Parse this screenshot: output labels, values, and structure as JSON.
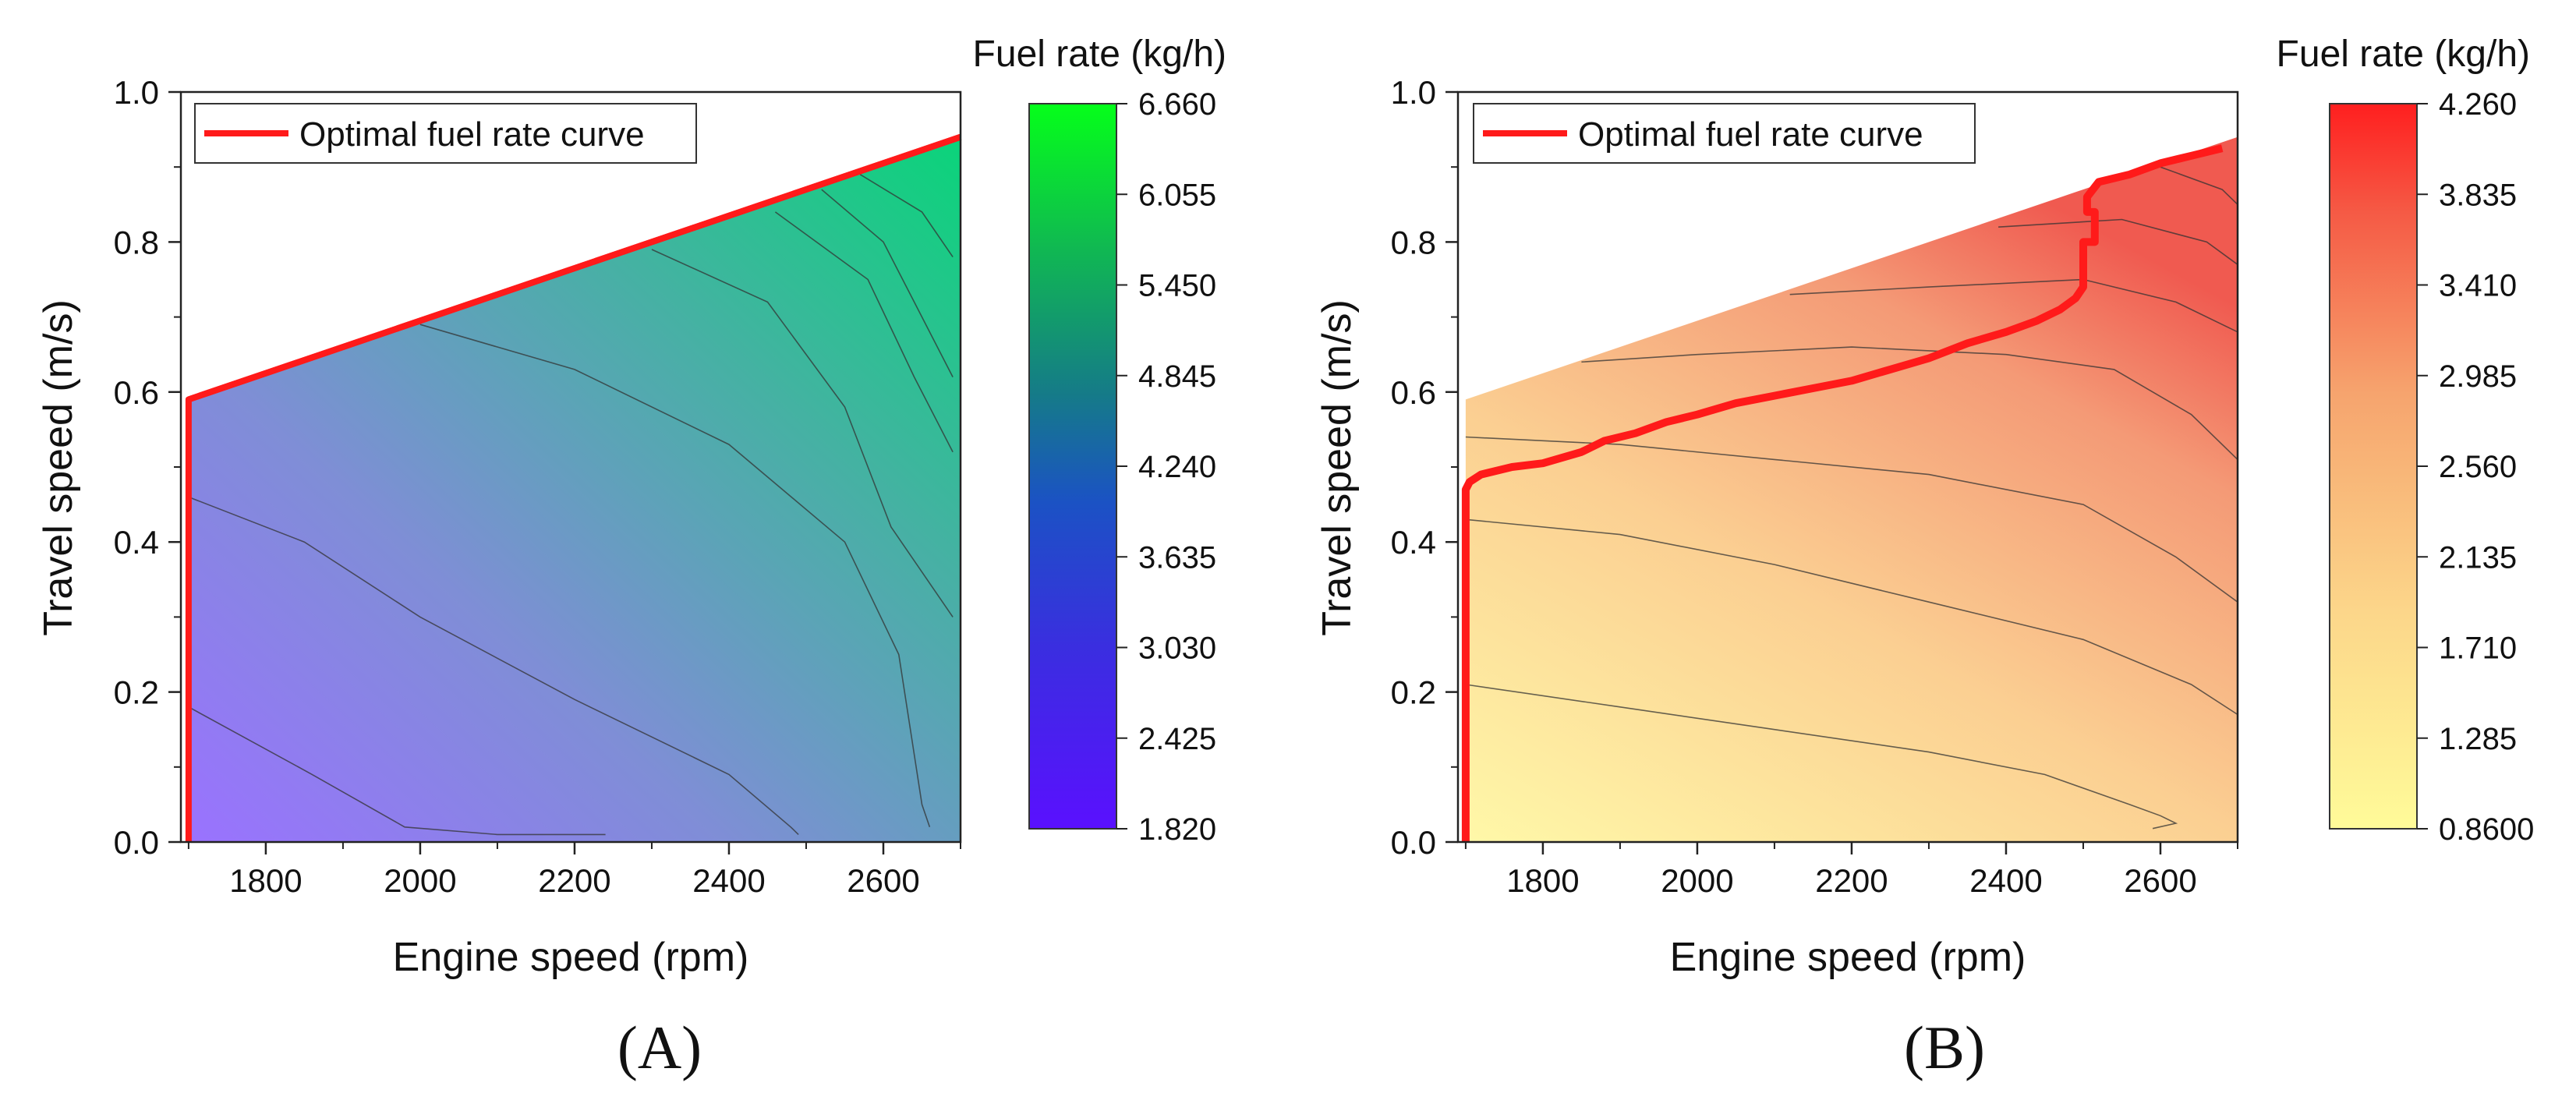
{
  "chart_data": [
    {
      "type": "contour",
      "panel_label": "(A)",
      "xlabel": "Engine speed (rpm)",
      "ylabel": "Travel speed (m/s)",
      "xlim": [
        1690,
        2700
      ],
      "ylim": [
        0.0,
        1.0
      ],
      "x_ticks": [
        1800,
        2000,
        2200,
        2400,
        2600
      ],
      "y_ticks": [
        0.0,
        0.2,
        0.4,
        0.6,
        0.8,
        1.0
      ],
      "x_tick_labels": [
        "1800",
        "2000",
        "2200",
        "2400",
        "2600"
      ],
      "y_tick_labels": [
        "0.0",
        "0.2",
        "0.4",
        "0.6",
        "0.8",
        "1.0"
      ],
      "colorbar_title": "Fuel rate (kg/h)",
      "colorbar_ticks": [
        "6.660",
        "6.055",
        "5.450",
        "4.845",
        "4.240",
        "3.635",
        "3.030",
        "2.425",
        "1.820"
      ],
      "colorbar_range": [
        1.82,
        6.66
      ],
      "colors": {
        "low": "#6a2bff",
        "mid": "#2c5fd8",
        "high": "#0ff21f"
      },
      "legend_label": "Optimal fuel rate curve",
      "legend_position": "top-left",
      "curve_color": "#ff1a1a",
      "feasible_boundary": {
        "x": [
          1700,
          2700
        ],
        "y": [
          0.59,
          0.94
        ]
      },
      "optimal_curve": {
        "x": [
          1700,
          1700,
          2700
        ],
        "y": [
          0.0,
          0.59,
          0.94
        ]
      },
      "contours": [
        {
          "x": [
            1700,
            1860,
            1980,
            2100,
            2240
          ],
          "y": [
            0.18,
            0.09,
            0.02,
            0.01,
            0.01
          ]
        },
        {
          "x": [
            1700,
            1850,
            2000,
            2200,
            2400,
            2480,
            2490
          ],
          "y": [
            0.46,
            0.4,
            0.3,
            0.19,
            0.09,
            0.02,
            0.01
          ]
        },
        {
          "x": [
            2000,
            2200,
            2400,
            2550,
            2620,
            2650,
            2660
          ],
          "y": [
            0.69,
            0.63,
            0.53,
            0.4,
            0.25,
            0.05,
            0.02
          ]
        },
        {
          "x": [
            2300,
            2450,
            2550,
            2610,
            2690
          ],
          "y": [
            0.79,
            0.72,
            0.58,
            0.42,
            0.3
          ]
        },
        {
          "x": [
            2460,
            2580,
            2640,
            2690
          ],
          "y": [
            0.84,
            0.75,
            0.62,
            0.52
          ]
        },
        {
          "x": [
            2520,
            2600,
            2650,
            2690
          ],
          "y": [
            0.87,
            0.8,
            0.7,
            0.62
          ]
        },
        {
          "x": [
            2570,
            2650,
            2690
          ],
          "y": [
            0.89,
            0.84,
            0.78
          ]
        }
      ]
    },
    {
      "type": "contour",
      "panel_label": "(B)",
      "xlabel": "Engine speed (rpm)",
      "ylabel": "Travel speed (m/s)",
      "xlim": [
        1690,
        2700
      ],
      "ylim": [
        0.0,
        1.0
      ],
      "x_ticks": [
        1800,
        2000,
        2200,
        2400,
        2600
      ],
      "y_ticks": [
        0.0,
        0.2,
        0.4,
        0.6,
        0.8,
        1.0
      ],
      "x_tick_labels": [
        "1800",
        "2000",
        "2200",
        "2400",
        "2600"
      ],
      "y_tick_labels": [
        "0.0",
        "0.2",
        "0.4",
        "0.6",
        "0.8",
        "1.0"
      ],
      "colorbar_title": "Fuel rate (kg/h)",
      "colorbar_ticks": [
        "4.260",
        "3.835",
        "3.410",
        "2.985",
        "2.560",
        "2.135",
        "1.710",
        "1.285",
        "0.8600"
      ],
      "colorbar_range": [
        0.86,
        4.26
      ],
      "colors": {
        "low": "#fffaa8",
        "mid": "#f8b07e",
        "high": "#ff2020"
      },
      "legend_label": "Optimal fuel rate curve",
      "legend_position": "top-left",
      "curve_color": "#ff1a1a",
      "feasible_boundary": {
        "x": [
          1700,
          2700
        ],
        "y": [
          0.59,
          0.94
        ]
      },
      "optimal_curve": {
        "x": [
          1700,
          1700,
          1705,
          1720,
          1760,
          1800,
          1850,
          1880,
          1920,
          1960,
          2000,
          2050,
          2100,
          2150,
          2200,
          2250,
          2300,
          2350,
          2400,
          2440,
          2470,
          2490,
          2500,
          2500,
          2515,
          2515,
          2505,
          2505,
          2520,
          2560,
          2600,
          2640,
          2680
        ],
        "y": [
          0.0,
          0.47,
          0.48,
          0.49,
          0.5,
          0.505,
          0.52,
          0.535,
          0.545,
          0.56,
          0.57,
          0.585,
          0.595,
          0.605,
          0.615,
          0.63,
          0.645,
          0.665,
          0.68,
          0.695,
          0.71,
          0.725,
          0.74,
          0.8,
          0.8,
          0.84,
          0.84,
          0.86,
          0.88,
          0.89,
          0.905,
          0.915,
          0.925
        ]
      },
      "contours": [
        {
          "x": [
            1700,
            1900,
            2100,
            2300,
            2450,
            2560,
            2600,
            2620,
            2590
          ],
          "y": [
            0.21,
            0.18,
            0.15,
            0.12,
            0.09,
            0.05,
            0.035,
            0.025,
            0.018
          ]
        },
        {
          "x": [
            1700,
            1900,
            2100,
            2300,
            2500,
            2640,
            2700
          ],
          "y": [
            0.43,
            0.41,
            0.37,
            0.32,
            0.27,
            0.21,
            0.17
          ]
        },
        {
          "x": [
            1700,
            1900,
            2100,
            2300,
            2500,
            2620,
            2700
          ],
          "y": [
            0.54,
            0.53,
            0.51,
            0.49,
            0.45,
            0.38,
            0.32
          ]
        },
        {
          "x": [
            1850,
            2000,
            2200,
            2400,
            2540,
            2640,
            2700
          ],
          "y": [
            0.64,
            0.65,
            0.66,
            0.65,
            0.63,
            0.57,
            0.51
          ]
        },
        {
          "x": [
            2120,
            2300,
            2500,
            2620,
            2700
          ],
          "y": [
            0.73,
            0.74,
            0.75,
            0.72,
            0.68
          ]
        },
        {
          "x": [
            2390,
            2550,
            2660,
            2700
          ],
          "y": [
            0.82,
            0.83,
            0.8,
            0.77
          ]
        },
        {
          "x": [
            2600,
            2680,
            2700
          ],
          "y": [
            0.9,
            0.87,
            0.85
          ]
        }
      ]
    }
  ]
}
